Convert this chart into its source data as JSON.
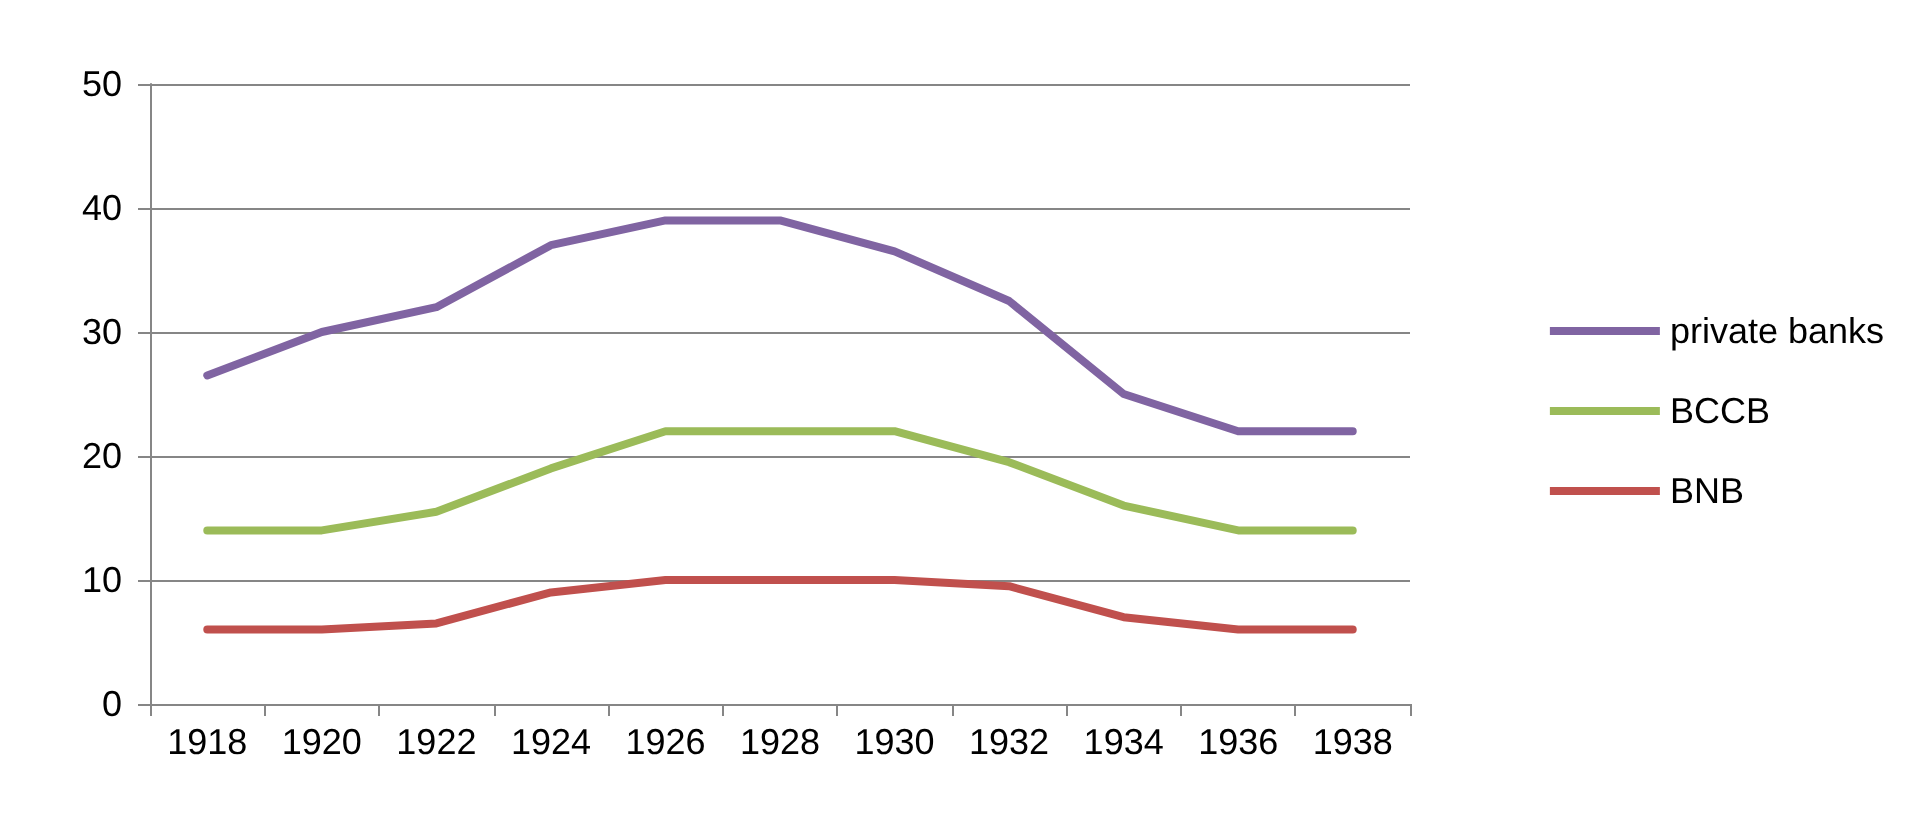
{
  "chart_data": {
    "type": "line",
    "categories": [
      "1918",
      "1920",
      "1922",
      "1924",
      "1926",
      "1928",
      "1930",
      "1932",
      "1934",
      "1936",
      "1938"
    ],
    "series": [
      {
        "name": "private banks",
        "color": "#8064a2",
        "values": [
          26.5,
          30,
          32,
          37,
          39,
          39,
          36.5,
          32.5,
          25,
          22,
          22
        ]
      },
      {
        "name": "BCCB",
        "color": "#9bbb59",
        "values": [
          14,
          14,
          15.5,
          19,
          22,
          22,
          22,
          19.5,
          16,
          14,
          14
        ]
      },
      {
        "name": "BNB",
        "color": "#c0504d",
        "values": [
          6,
          6,
          6.5,
          9,
          10,
          10,
          10,
          9.5,
          7,
          6,
          6
        ]
      }
    ],
    "ylim": [
      0,
      50
    ],
    "yticks": [
      0,
      10,
      20,
      30,
      40,
      50
    ],
    "grid": "y",
    "legend": "right",
    "marker": "none",
    "line_style": "solid"
  }
}
